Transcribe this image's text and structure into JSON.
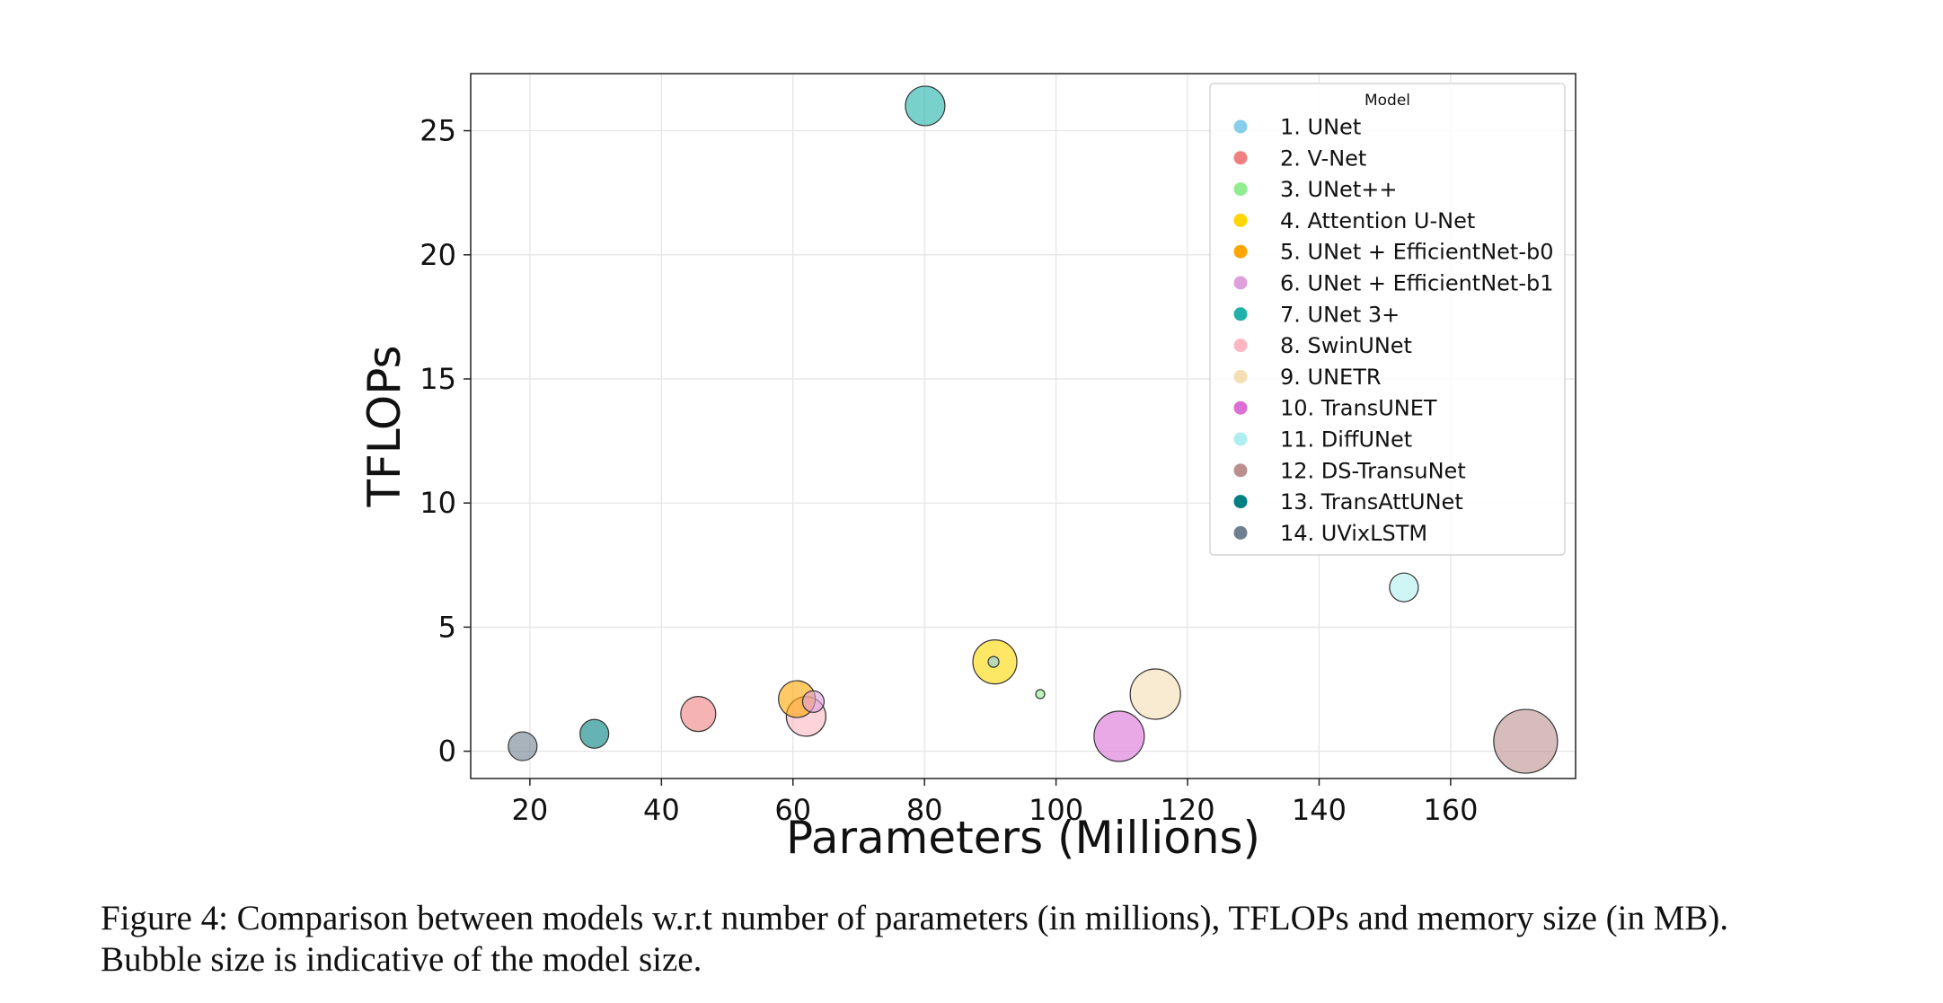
{
  "chart_data": {
    "type": "scatter",
    "xlabel": "Parameters (Millions)",
    "ylabel": "TFLOPs",
    "xlim": [
      11,
      179
    ],
    "ylim": [
      -1.1,
      27.3
    ],
    "xticks": [
      20,
      40,
      60,
      80,
      100,
      120,
      140,
      160
    ],
    "yticks": [
      0,
      5,
      10,
      15,
      20,
      25
    ],
    "grid": true,
    "legend": {
      "title": "Model",
      "placement": "top-right"
    },
    "series": [
      {
        "name": "1. UNet",
        "color": "#87CEEB",
        "x": 90.5,
        "y": 3.6,
        "size": 8
      },
      {
        "name": "2. V-Net",
        "color": "#F08080",
        "x": 45.6,
        "y": 1.5,
        "size": 35
      },
      {
        "name": "3. UNet++",
        "color": "#90EE90",
        "x": 97.6,
        "y": 2.3,
        "size": 6
      },
      {
        "name": "4. Attention U-Net",
        "color": "#FFD700",
        "x": 90.7,
        "y": 3.6,
        "size": 45
      },
      {
        "name": "5. UNet + EfficientNet-b0",
        "color": "#FFA500",
        "x": 60.6,
        "y": 2.1,
        "size": 37
      },
      {
        "name": "6. UNet + EfficientNet-b1",
        "color": "#DDA0DD",
        "x": 63.1,
        "y": 2.0,
        "size": 20
      },
      {
        "name": "7. UNet 3+",
        "color": "#20B2AA",
        "x": 80.1,
        "y": 26.0,
        "size": 40
      },
      {
        "name": "8. SwinUNet",
        "color": "#FFB6C1",
        "x": 62.0,
        "y": 1.4,
        "size": 40
      },
      {
        "name": "9. UNETR",
        "color": "#F5DEB3",
        "x": 115.1,
        "y": 2.3,
        "size": 52
      },
      {
        "name": "10. TransUNET",
        "color": "#DA70D6",
        "x": 109.6,
        "y": 0.6,
        "size": 52
      },
      {
        "name": "11. DiffUNet",
        "color": "#AFEEEE",
        "x": 152.9,
        "y": 6.6,
        "size": 28
      },
      {
        "name": "12. DS-TransuNet",
        "color": "#BC8F8F",
        "x": 171.4,
        "y": 0.4,
        "size": 67
      },
      {
        "name": "13. TransAttUNet",
        "color": "#008080",
        "x": 29.8,
        "y": 0.7,
        "size": 28
      },
      {
        "name": "14. UVixLSTM",
        "color": "#708090",
        "x": 18.9,
        "y": 0.2,
        "size": 28
      }
    ]
  },
  "caption": {
    "line1": "Figure 4: Comparison between models w.r.t number of parameters (in millions), TFLOPs and memory size (in MB).",
    "line2": "Bubble size is indicative of the model size."
  }
}
